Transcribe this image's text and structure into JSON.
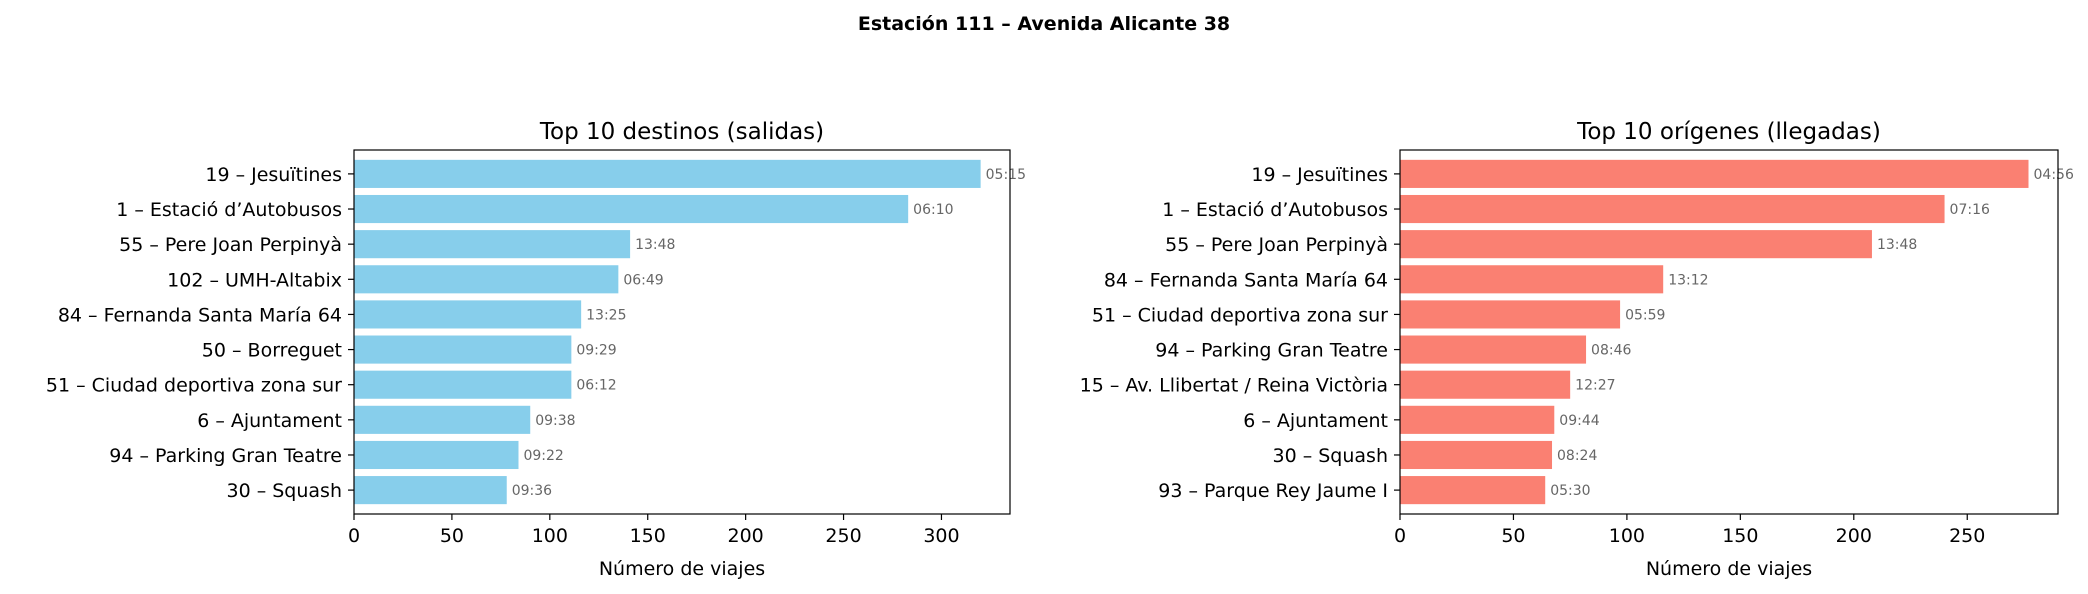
{
  "suptitle": "Estación 111 – Avenida Alicante 38",
  "chart_data": [
    {
      "type": "bar",
      "orientation": "horizontal",
      "title": "Top 10 destinos (salidas)",
      "xlabel": "Número de viajes",
      "ylabel": "",
      "xlim": [
        0,
        335
      ],
      "xticks": [
        0,
        50,
        100,
        150,
        200,
        250,
        300
      ],
      "color": "#87ceeb",
      "grid": false,
      "categories": [
        "19 – Jesuïtines",
        "1 – Estació d’Autobusos",
        "55 – Pere Joan Perpinyà",
        "102 – UMH-Altabix",
        "84 – Fernanda Santa María 64",
        "50 – Borreguet",
        "51 – Ciudad deportiva zona sur",
        "6 – Ajuntament",
        "94 – Parking Gran Teatre",
        "30 – Squash"
      ],
      "values": [
        320,
        283,
        141,
        135,
        116,
        111,
        111,
        90,
        84,
        78
      ],
      "data_labels": [
        "05:15",
        "06:10",
        "13:48",
        "06:49",
        "13:25",
        "09:29",
        "06:12",
        "09:38",
        "09:22",
        "09:36"
      ]
    },
    {
      "type": "bar",
      "orientation": "horizontal",
      "title": "Top 10 orígenes (llegadas)",
      "xlabel": "Número de viajes",
      "ylabel": "",
      "xlim": [
        0,
        290
      ],
      "xticks": [
        0,
        50,
        100,
        150,
        200,
        250
      ],
      "color": "#fa8072",
      "grid": false,
      "categories": [
        "19 – Jesuïtines",
        "1 – Estació d’Autobusos",
        "55 – Pere Joan Perpinyà",
        "84 – Fernanda Santa María 64",
        "51 – Ciudad deportiva zona sur",
        "94 – Parking Gran Teatre",
        "15 – Av. Llibertat / Reina Victòria",
        "6 – Ajuntament",
        "30 – Squash",
        "93 – Parque Rey Jaume I"
      ],
      "values": [
        277,
        240,
        208,
        116,
        97,
        82,
        75,
        68,
        67,
        64
      ],
      "data_labels": [
        "04:56",
        "07:16",
        "13:48",
        "13:12",
        "05:59",
        "08:46",
        "12:27",
        "09:44",
        "08:24",
        "05:30"
      ]
    }
  ]
}
